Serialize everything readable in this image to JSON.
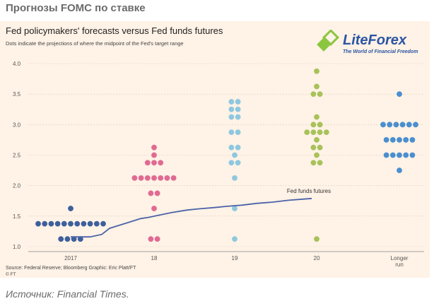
{
  "page": {
    "heading": "Прогнозы FOMC по ставке",
    "caption": "Источник: Financial Times."
  },
  "logo": {
    "name": "LiteForex",
    "tagline": "The World of Financial Freedom",
    "colors": {
      "green": "#8cc63f",
      "blue": "#2a55a4"
    }
  },
  "chart_data": {
    "type": "scatter",
    "title": "Fed policymakers' forecasts versus Fed funds futures",
    "subtitle": "Dots indicate the projections of where the midpoint of the Fed's target range",
    "source": "Source: Federal Reserve; Bloomberg    Graphic: Eric Platt/FT",
    "credit": "© FT",
    "ylim": [
      1.0,
      4.0
    ],
    "yticks": [
      "1.0",
      "1.5",
      "2.0",
      "2.5",
      "3.0",
      "3.5",
      "4.0"
    ],
    "categories": [
      "2017",
      "18",
      "19",
      "20",
      "Longer run"
    ],
    "grid": true,
    "dot_series": [
      {
        "category": "2017",
        "color": "#3d5f9c",
        "levels": [
          {
            "y": 1.625,
            "n": 1
          },
          {
            "y": 1.375,
            "n": 11
          },
          {
            "y": 1.125,
            "n": 4
          }
        ]
      },
      {
        "category": "18",
        "color": "#e06a92",
        "levels": [
          {
            "y": 2.625,
            "n": 1
          },
          {
            "y": 2.5,
            "n": 1
          },
          {
            "y": 2.375,
            "n": 3
          },
          {
            "y": 2.125,
            "n": 7
          },
          {
            "y": 1.875,
            "n": 2
          },
          {
            "y": 1.625,
            "n": 1
          },
          {
            "y": 1.125,
            "n": 2
          }
        ]
      },
      {
        "category": "19",
        "color": "#8ec8df",
        "levels": [
          {
            "y": 3.375,
            "n": 2
          },
          {
            "y": 3.25,
            "n": 2
          },
          {
            "y": 3.125,
            "n": 2
          },
          {
            "y": 2.875,
            "n": 2
          },
          {
            "y": 2.625,
            "n": 2
          },
          {
            "y": 2.5,
            "n": 1
          },
          {
            "y": 2.375,
            "n": 2
          },
          {
            "y": 2.125,
            "n": 1
          },
          {
            "y": 1.625,
            "n": 1
          },
          {
            "y": 1.125,
            "n": 1
          }
        ]
      },
      {
        "category": "20",
        "color": "#a7c25a",
        "levels": [
          {
            "y": 3.875,
            "n": 1
          },
          {
            "y": 3.625,
            "n": 1
          },
          {
            "y": 3.5,
            "n": 2
          },
          {
            "y": 3.125,
            "n": 1
          },
          {
            "y": 3.0,
            "n": 2
          },
          {
            "y": 2.875,
            "n": 4
          },
          {
            "y": 2.75,
            "n": 1
          },
          {
            "y": 2.625,
            "n": 2
          },
          {
            "y": 2.5,
            "n": 1
          },
          {
            "y": 2.375,
            "n": 2
          },
          {
            "y": 1.125,
            "n": 1
          }
        ]
      },
      {
        "category": "Longer run",
        "color": "#4a8fcf",
        "levels": [
          {
            "y": 3.5,
            "n": 1
          },
          {
            "y": 3.0,
            "n": 6
          },
          {
            "y": 2.75,
            "n": 5
          },
          {
            "y": 2.5,
            "n": 5
          },
          {
            "y": 2.25,
            "n": 1
          }
        ]
      }
    ],
    "futures": {
      "name": "Fed funds futures",
      "color": "#4a63a8",
      "points": [
        [
          0.0,
          1.16
        ],
        [
          0.25,
          1.16
        ],
        [
          0.4,
          1.2
        ],
        [
          0.5,
          1.3
        ],
        [
          0.6,
          1.34
        ],
        [
          0.75,
          1.4
        ],
        [
          0.9,
          1.46
        ],
        [
          1.0,
          1.48
        ],
        [
          1.15,
          1.52
        ],
        [
          1.3,
          1.56
        ],
        [
          1.5,
          1.6
        ],
        [
          1.65,
          1.62
        ],
        [
          1.85,
          1.64
        ],
        [
          2.0,
          1.66
        ],
        [
          2.2,
          1.68
        ],
        [
          2.4,
          1.71
        ],
        [
          2.6,
          1.73
        ],
        [
          2.8,
          1.76
        ],
        [
          3.0,
          1.78
        ],
        [
          3.1,
          1.79
        ]
      ]
    }
  }
}
